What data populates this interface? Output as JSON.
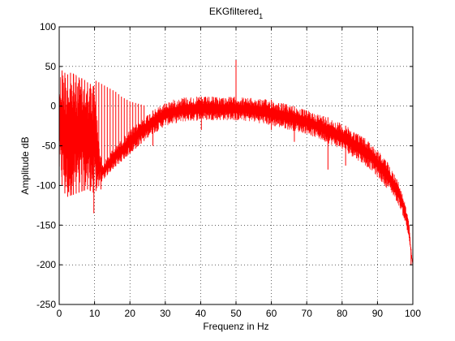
{
  "chart_data": {
    "type": "line",
    "title": "EKGfiltered",
    "title_subscript": "1",
    "xlabel": "Frequenz in Hz",
    "ylabel": "Amplitude dB",
    "xlim": [
      0,
      100
    ],
    "ylim": [
      -250,
      100
    ],
    "xticks": [
      0,
      10,
      20,
      30,
      40,
      50,
      60,
      70,
      80,
      90,
      100
    ],
    "yticks": [
      -250,
      -200,
      -150,
      -100,
      -50,
      0,
      50,
      100
    ],
    "grid": true,
    "grid_style": "dotted",
    "series": [
      {
        "color": "#ff0000",
        "x": [
          0,
          2,
          5,
          8,
          10,
          12,
          15,
          20,
          25,
          30,
          35,
          40,
          45,
          50,
          55,
          60,
          65,
          70,
          75,
          80,
          85,
          88,
          90,
          92,
          94,
          96,
          97,
          98,
          99,
          99.5,
          100
        ],
        "y_upper": [
          45,
          44,
          40,
          30,
          25,
          -75,
          -55,
          -30,
          -10,
          5,
          12,
          12,
          12,
          12,
          10,
          8,
          2,
          -5,
          -12,
          -22,
          -35,
          -45,
          -55,
          -65,
          -78,
          -95,
          -110,
          -125,
          -150,
          -180,
          -200
        ],
        "y_lower": [
          -90,
          -115,
          -110,
          -105,
          -110,
          -95,
          -80,
          -60,
          -40,
          -25,
          -20,
          -18,
          -18,
          -18,
          -20,
          -25,
          -30,
          -35,
          -45,
          -55,
          -70,
          -80,
          -90,
          -100,
          -110,
          -125,
          -135,
          -150,
          -170,
          -190,
          -200
        ]
      }
    ],
    "spikes": [
      {
        "x": 0.8,
        "y": 45
      },
      {
        "x": 1.6,
        "y": 42
      },
      {
        "x": 2.4,
        "y": 40
      },
      {
        "x": 3.2,
        "y": 42
      },
      {
        "x": 4.0,
        "y": 41
      },
      {
        "x": 4.8,
        "y": 38
      },
      {
        "x": 5.6,
        "y": 36
      },
      {
        "x": 6.4,
        "y": 35
      },
      {
        "x": 7.2,
        "y": 33
      },
      {
        "x": 8.0,
        "y": 30
      },
      {
        "x": 8.8,
        "y": 28
      },
      {
        "x": 9.6,
        "y": 25
      },
      {
        "x": 10.4,
        "y": 32
      },
      {
        "x": 11.2,
        "y": 30
      },
      {
        "x": 12.0,
        "y": 28
      },
      {
        "x": 12.8,
        "y": 26
      },
      {
        "x": 13.6,
        "y": 24
      },
      {
        "x": 14.4,
        "y": 22
      },
      {
        "x": 15.2,
        "y": 20
      },
      {
        "x": 16.0,
        "y": 18
      },
      {
        "x": 16.8,
        "y": 15
      },
      {
        "x": 17.6,
        "y": 12
      },
      {
        "x": 18.4,
        "y": 10
      },
      {
        "x": 19.2,
        "y": 8
      },
      {
        "x": 20.0,
        "y": 6
      },
      {
        "x": 20.8,
        "y": 5
      },
      {
        "x": 21.6,
        "y": 4
      },
      {
        "x": 22.4,
        "y": 3
      },
      {
        "x": 23.2,
        "y": 2
      },
      {
        "x": 24.0,
        "y": 1
      },
      {
        "x": 50.0,
        "y": 58
      }
    ],
    "notches": [
      {
        "x": 9.8,
        "y": -135
      },
      {
        "x": 11.8,
        "y": -105
      },
      {
        "x": 26.5,
        "y": -50
      },
      {
        "x": 40.2,
        "y": -30
      },
      {
        "x": 60.0,
        "y": -30
      },
      {
        "x": 66.5,
        "y": -45
      },
      {
        "x": 76.0,
        "y": -80
      },
      {
        "x": 81.0,
        "y": -75
      },
      {
        "x": 99.5,
        "y": -200
      }
    ]
  }
}
